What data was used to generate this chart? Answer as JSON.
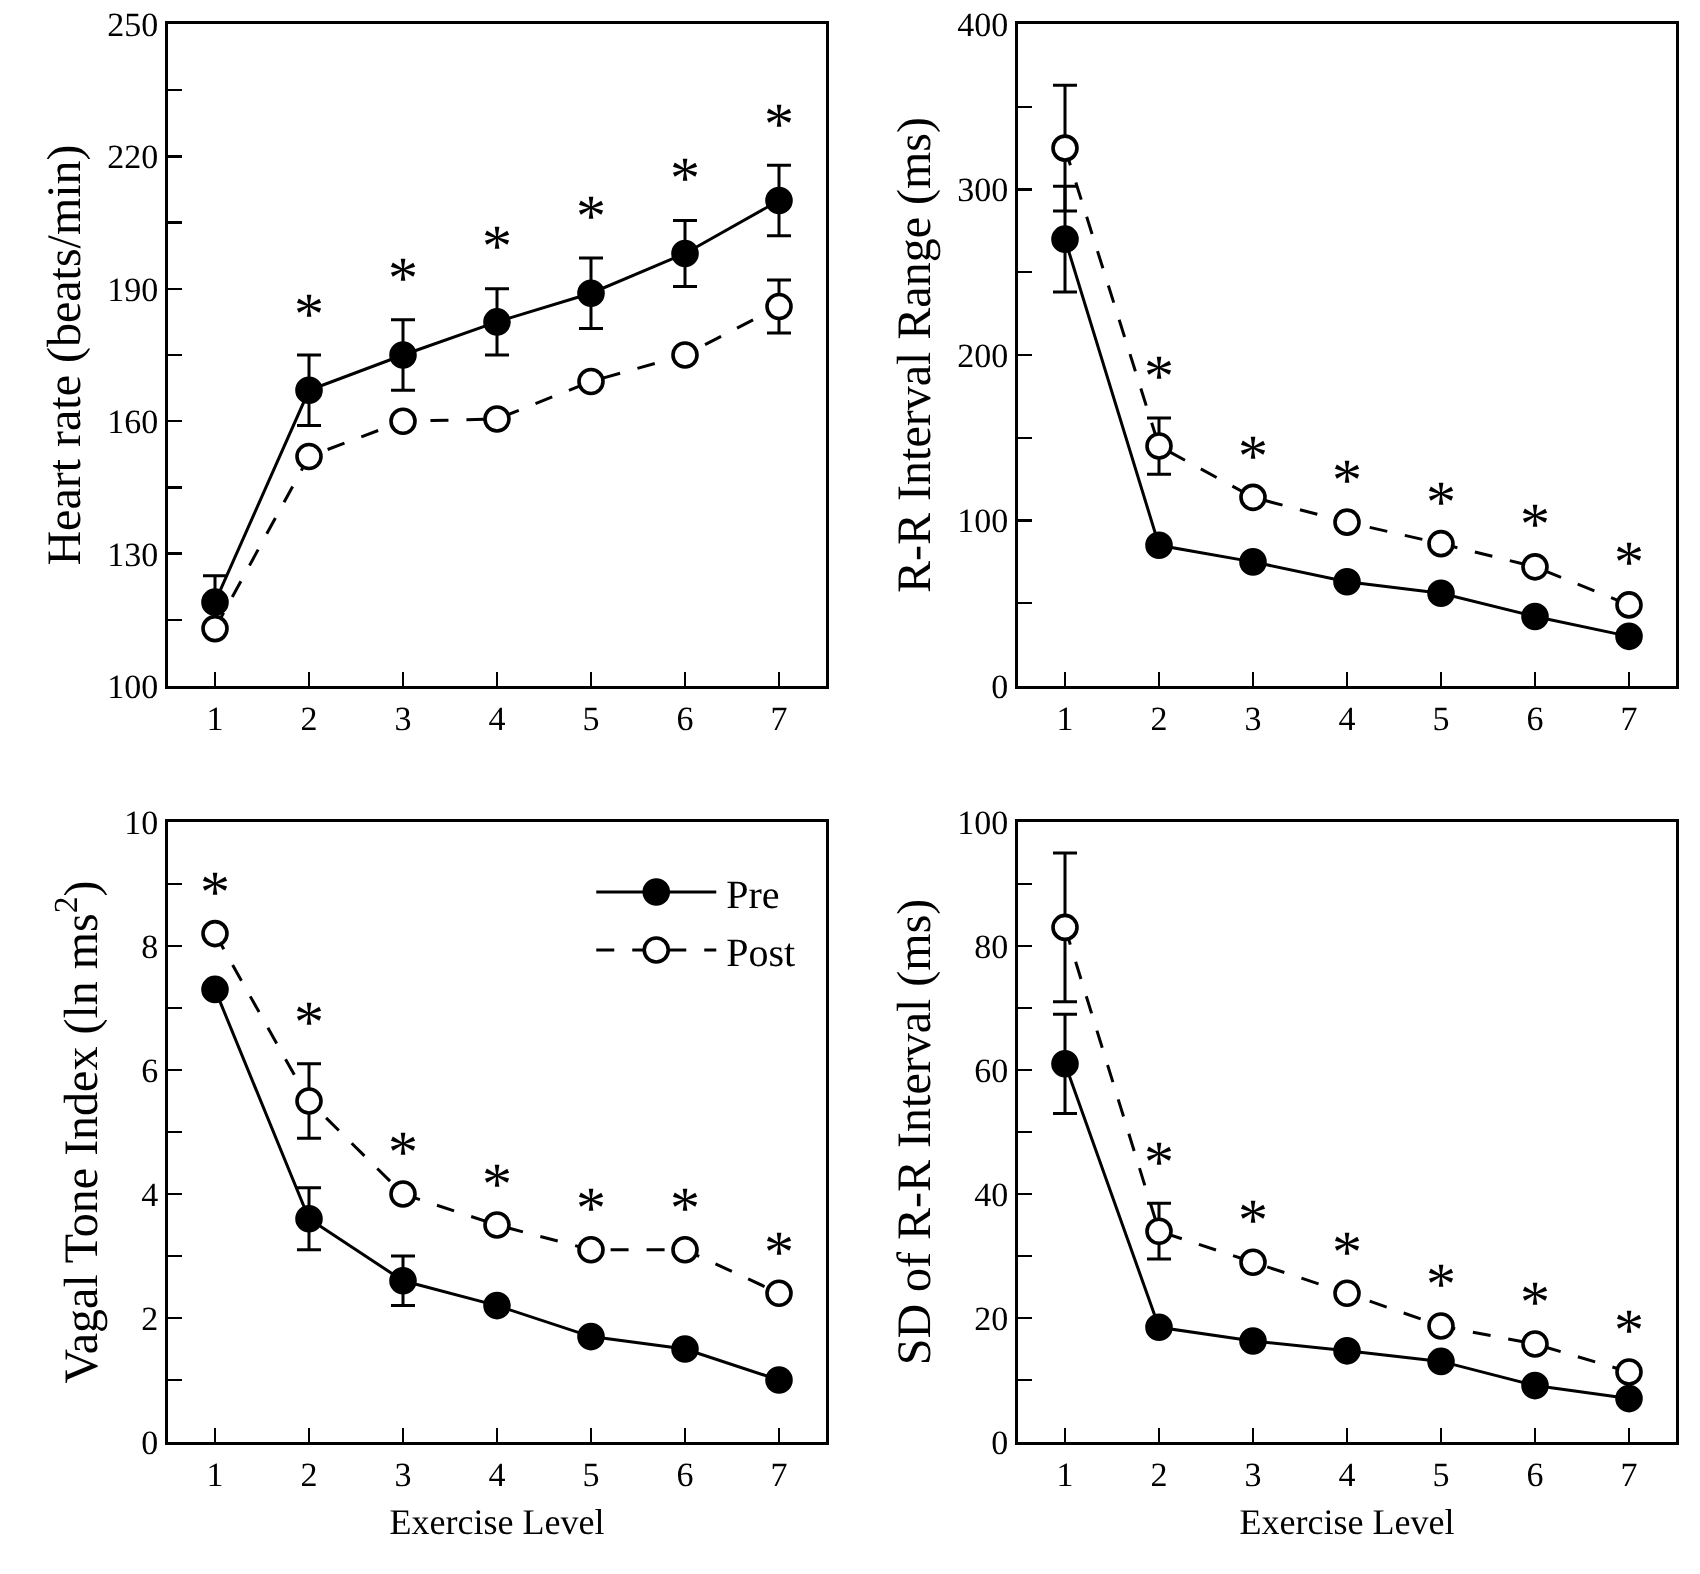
{
  "chart_data": [
    {
      "type": "line",
      "ylabel": "Heart rate (beats/min)",
      "x": [
        1,
        2,
        3,
        4,
        5,
        6,
        7
      ],
      "xlim": [
        0.5,
        7.5
      ],
      "xticks": [
        1,
        2,
        3,
        4,
        5,
        6,
        7
      ],
      "ylim": [
        100,
        250
      ],
      "yticks": [
        100,
        {
          "value": 115,
          "label": null
        },
        130,
        {
          "value": 145,
          "label": null
        },
        160,
        {
          "value": 175,
          "label": null
        },
        190,
        {
          "value": 205,
          "label": null
        },
        220,
        {
          "value": 235,
          "label": null
        },
        250
      ],
      "marker": "circle",
      "legend": false,
      "series": [
        {
          "color": "#000000",
          "line_style": "solid",
          "values": [
            119,
            167,
            175,
            182.5,
            189,
            198,
            210
          ],
          "errors": [
            6,
            8,
            8,
            7.5,
            8,
            7.5,
            8
          ]
        },
        {
          "color": "#000000",
          "line_style": "dashed",
          "values": [
            113,
            152,
            160,
            160.5,
            169,
            175,
            186
          ],
          "errors": [
            null,
            null,
            null,
            null,
            null,
            null,
            6
          ]
        }
      ],
      "annotations": [
        "*",
        "*",
        "*",
        "*",
        "*",
        "*"
      ]
    },
    {
      "type": "line",
      "ylabel": "R-R Interval Range (ms)",
      "x": [
        1,
        2,
        3,
        4,
        5,
        6,
        7
      ],
      "xlim": [
        0.5,
        7.5
      ],
      "xticks": [
        1,
        2,
        3,
        4,
        5,
        6,
        7
      ],
      "ylim": [
        0,
        400
      ],
      "yticks": [
        0,
        {
          "value": 50,
          "label": null
        },
        100,
        {
          "value": 150,
          "label": null
        },
        200,
        {
          "value": 250,
          "label": null
        },
        300,
        {
          "value": 350,
          "label": null
        },
        400
      ],
      "marker": "circle",
      "legend": false,
      "series": [
        {
          "color": "#000000",
          "line_style": "solid",
          "values": [
            270,
            85,
            75,
            63,
            56,
            42,
            30
          ],
          "errors": [
            32,
            null,
            null,
            null,
            null,
            null,
            null
          ]
        },
        {
          "color": "#000000",
          "line_style": "dashed",
          "values": [
            325,
            145,
            114,
            99,
            86,
            72,
            49
          ],
          "errors": [
            38,
            17,
            null,
            null,
            null,
            null,
            null
          ]
        }
      ],
      "annotations": [
        "*",
        "*",
        "*",
        "*",
        "*",
        "*"
      ]
    },
    {
      "type": "line",
      "ylabel": "Vagal Tone Index (ln ms$^{2}$)",
      "xlabel": "Exercise Level",
      "x": [
        1,
        2,
        3,
        4,
        5,
        6,
        7
      ],
      "xlim": [
        0.5,
        7.5
      ],
      "xticks": [
        1,
        2,
        3,
        4,
        5,
        6,
        7
      ],
      "ylim": [
        0,
        10
      ],
      "yticks": [
        0,
        {
          "value": 1,
          "label": null
        },
        2,
        {
          "value": 3,
          "label": null
        },
        4,
        {
          "value": 5,
          "label": null
        },
        6,
        {
          "value": 7,
          "label": null
        },
        8,
        {
          "value": 9,
          "label": null
        },
        10
      ],
      "marker": "circle",
      "legend": "top right",
      "series": [
        {
          "name": "Pre",
          "color": "#000000",
          "line_style": "solid",
          "values": [
            7.3,
            3.6,
            2.6,
            2.2,
            1.7,
            1.5,
            1.0
          ],
          "errors": [
            null,
            0.5,
            0.4,
            null,
            null,
            null,
            null
          ]
        },
        {
          "name": "Post",
          "color": "#000000",
          "line_style": "dashed",
          "values": [
            8.2,
            5.5,
            4.0,
            3.5,
            3.1,
            3.1,
            2.4
          ],
          "errors": [
            null,
            0.6,
            null,
            null,
            null,
            null,
            null
          ]
        }
      ],
      "annotations": [
        "*",
        "*",
        "*",
        "*",
        "*",
        "*",
        "*"
      ]
    },
    {
      "type": "line",
      "ylabel": "SD of R-R Interval (ms)",
      "xlabel": "Exercise Level",
      "x": [
        1,
        2,
        3,
        4,
        5,
        6,
        7
      ],
      "xlim": [
        0.5,
        7.5
      ],
      "xticks": [
        1,
        2,
        3,
        4,
        5,
        6,
        7
      ],
      "ylim": [
        0,
        100
      ],
      "yticks": [
        0,
        {
          "value": 10,
          "label": null
        },
        20,
        {
          "value": 30,
          "label": null
        },
        40,
        {
          "value": 50,
          "label": null
        },
        60,
        {
          "value": 70,
          "label": null
        },
        80,
        {
          "value": 90,
          "label": null
        },
        100
      ],
      "marker": "circle",
      "legend": false,
      "series": [
        {
          "color": "#000000",
          "line_style": "solid",
          "values": [
            61,
            18.5,
            16.3,
            14.7,
            13,
            9.1,
            7
          ],
          "errors": [
            8,
            null,
            null,
            null,
            null,
            null,
            null
          ]
        },
        {
          "color": "#000000",
          "line_style": "dashed",
          "values": [
            83,
            34,
            29,
            24,
            18.7,
            15.8,
            11.3
          ],
          "errors": [
            12,
            4.5,
            null,
            null,
            null,
            null,
            null
          ]
        }
      ],
      "annotations": [
        "*",
        "*",
        "*",
        "*",
        "*",
        "*"
      ]
    }
  ]
}
